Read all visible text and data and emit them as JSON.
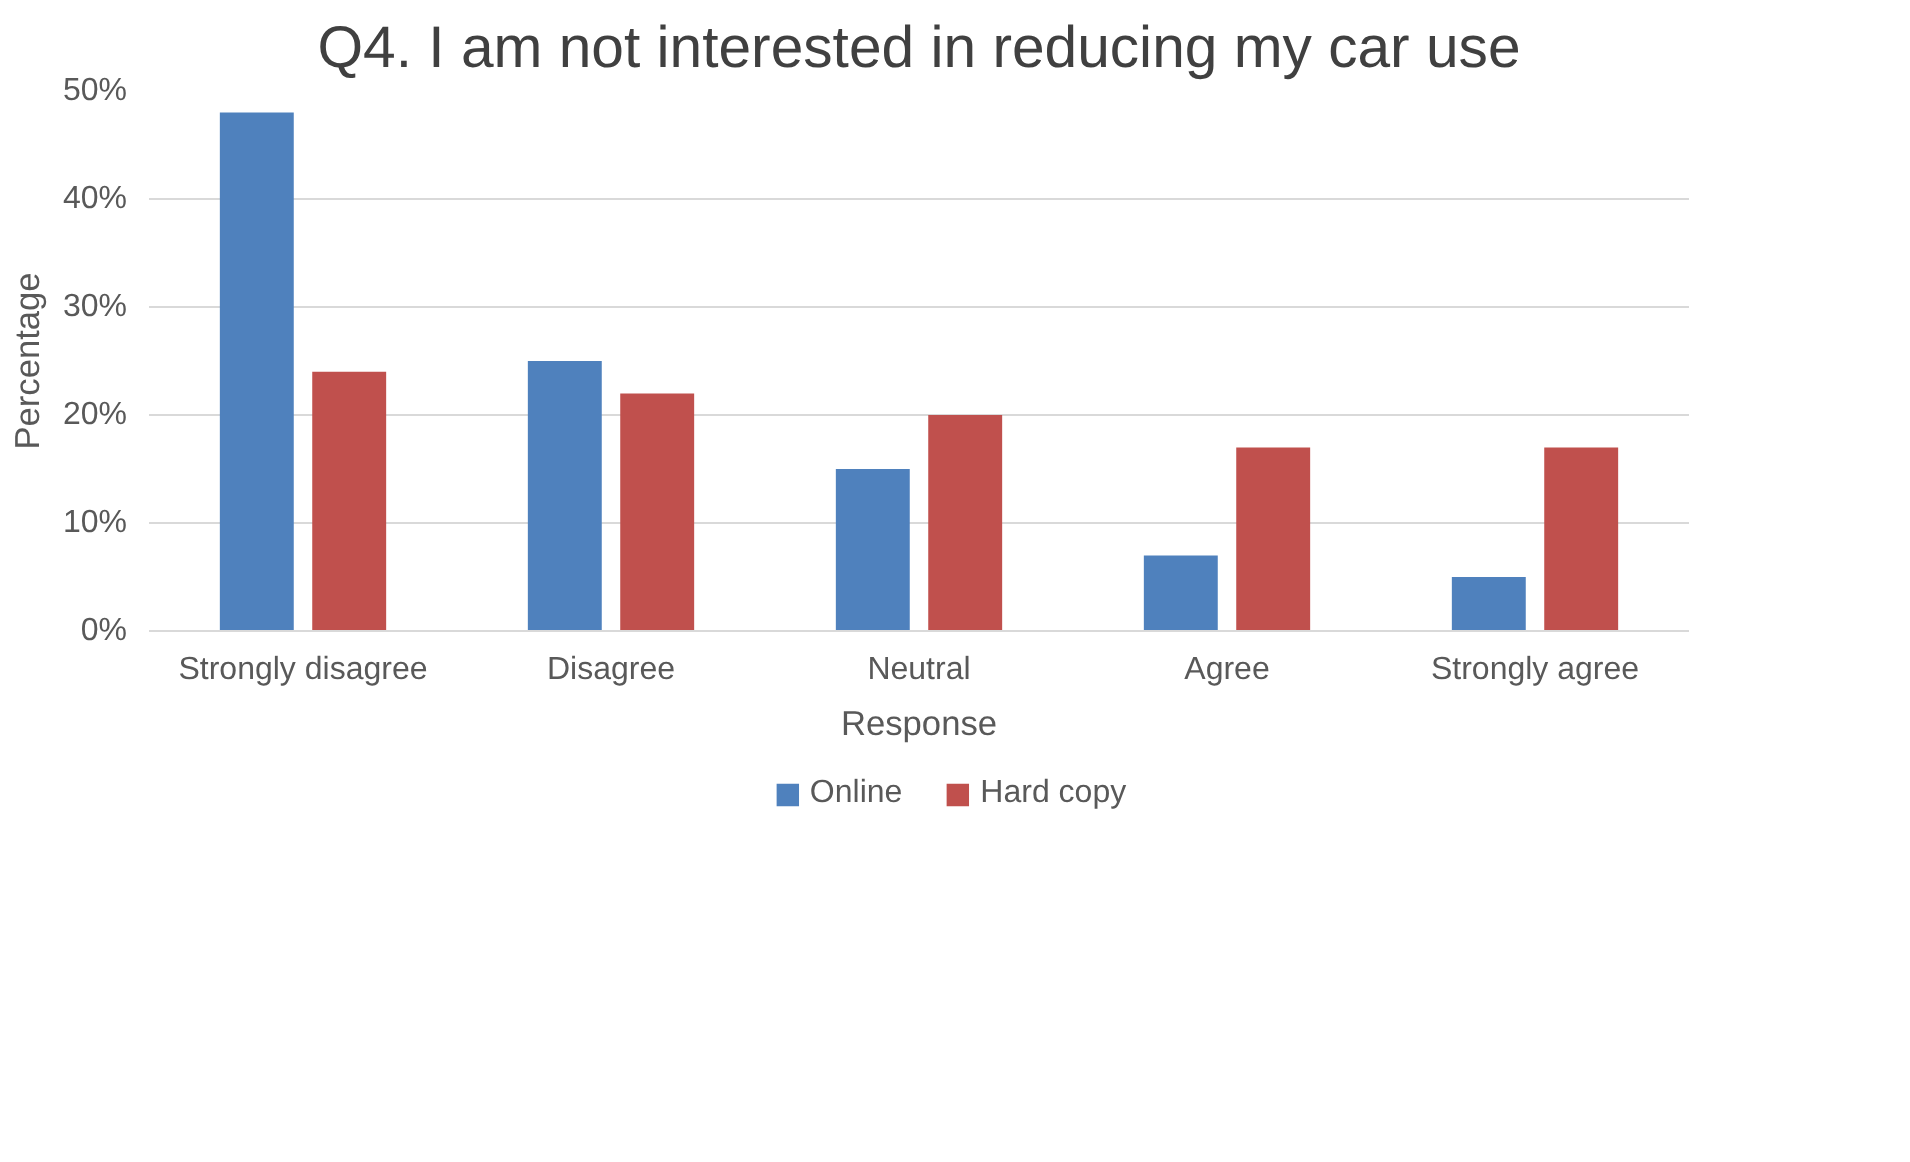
{
  "chart_data": {
    "type": "bar",
    "title": "Q4. I am not interested in reducing my car use",
    "xlabel": "Response",
    "ylabel": "Percentage",
    "categories": [
      "Strongly disagree",
      "Disagree",
      "Neutral",
      "Agree",
      "Strongly agree"
    ],
    "series": [
      {
        "name": "Online",
        "color": "#4f81bd",
        "values": [
          48,
          25,
          15,
          7,
          5
        ]
      },
      {
        "name": "Hard copy",
        "color": "#c0504d",
        "values": [
          24,
          22,
          20,
          17,
          17
        ]
      }
    ],
    "ylim": [
      0,
      50
    ],
    "yticks": [
      {
        "value": 0,
        "label": "0%"
      },
      {
        "value": 10,
        "label": "10%"
      },
      {
        "value": 20,
        "label": "20%"
      },
      {
        "value": 30,
        "label": "30%"
      },
      {
        "value": 40,
        "label": "40%"
      },
      {
        "value": 50,
        "label": "50%"
      }
    ],
    "grid": "y",
    "legend": "bottom"
  }
}
